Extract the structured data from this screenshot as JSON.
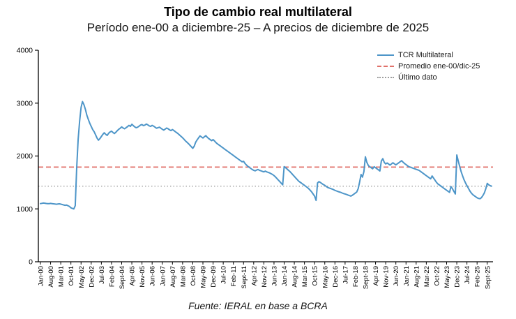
{
  "header": {
    "title": "Tipo de cambio real multilateral",
    "subtitle": "Período ene-00 a diciembre-25 – A precios de diciembre de 2025"
  },
  "footer": {
    "source": "Fuente: IERAL en base a BCRA"
  },
  "legend": [
    {
      "label": "TCR Multilateral",
      "line_style": "solid",
      "color": "#4d95c8"
    },
    {
      "label": "Promedio ene-00/dic-25",
      "line_style": "dashed",
      "color": "#e0716a"
    },
    {
      "label": "Último dato",
      "line_style": "dotted",
      "color": "#9e9e9e"
    }
  ],
  "chart_data": {
    "type": "line",
    "title": "Tipo de cambio real multilateral",
    "subtitle": "Período ene-00 a diciembre-25 – A precios de diciembre de 2025",
    "source": "Fuente: IERAL en base a BCRA",
    "x_unit": "month",
    "x_range": [
      "Jan-00",
      "Dec-25"
    ],
    "x_label_step_months": 7,
    "x_tick_labels": [
      "Jan-00",
      "Aug-00",
      "Mar-01",
      "Oct-01",
      "May-02",
      "Dec-02",
      "Jul-03",
      "Feb-04",
      "Sept-04",
      "Apr-05",
      "Nov-05",
      "Jun-06",
      "Jan-07",
      "Aug-07",
      "Mar-08",
      "Oct-08",
      "May-09",
      "Dec-09",
      "Jul-10",
      "Feb-11",
      "Sept-11",
      "Apr-12",
      "Nov-12",
      "Jun-13",
      "Jan-14",
      "Aug-14",
      "Mar-15",
      "Oct-15",
      "May-16",
      "Dec-16",
      "Jul-17",
      "Feb-18",
      "Sept-18",
      "Apr-19",
      "Nov-19",
      "Jun-20",
      "Jan-21",
      "Aug-21",
      "Mar-22",
      "Oct-22",
      "May-23",
      "Dec-23",
      "Jul-24",
      "Feb-25",
      "Sept-25"
    ],
    "ylim": [
      0,
      4000
    ],
    "y_ticks": [
      0,
      1000,
      2000,
      3000,
      4000
    ],
    "grid": false,
    "legend_position": "top-right",
    "series": [
      {
        "name": "TCR Multilateral",
        "color": "#4d95c8",
        "monthly_values": [
          1100,
          1105,
          1110,
          1108,
          1102,
          1098,
          1100,
          1104,
          1100,
          1096,
          1092,
          1088,
          1092,
          1096,
          1090,
          1082,
          1075,
          1068,
          1072,
          1060,
          1045,
          1020,
          1008,
          1000,
          1060,
          1780,
          2320,
          2660,
          2920,
          3030,
          2970,
          2880,
          2770,
          2690,
          2620,
          2560,
          2500,
          2460,
          2400,
          2340,
          2300,
          2330,
          2370,
          2410,
          2440,
          2410,
          2390,
          2430,
          2455,
          2470,
          2445,
          2425,
          2450,
          2480,
          2505,
          2525,
          2550,
          2530,
          2515,
          2535,
          2555,
          2580,
          2560,
          2600,
          2575,
          2550,
          2535,
          2545,
          2565,
          2585,
          2595,
          2575,
          2585,
          2605,
          2590,
          2570,
          2560,
          2580,
          2565,
          2545,
          2525,
          2535,
          2545,
          2525,
          2505,
          2490,
          2510,
          2530,
          2515,
          2495,
          2480,
          2500,
          2480,
          2460,
          2440,
          2420,
          2395,
          2370,
          2345,
          2315,
          2285,
          2260,
          2235,
          2205,
          2175,
          2145,
          2185,
          2260,
          2305,
          2345,
          2380,
          2360,
          2340,
          2365,
          2385,
          2355,
          2330,
          2310,
          2290,
          2310,
          2285,
          2255,
          2230,
          2210,
          2190,
          2170,
          2150,
          2130,
          2110,
          2090,
          2070,
          2050,
          2030,
          2010,
          1990,
          1970,
          1950,
          1930,
          1910,
          1890,
          1900,
          1860,
          1830,
          1805,
          1785,
          1765,
          1745,
          1730,
          1720,
          1735,
          1745,
          1730,
          1720,
          1710,
          1700,
          1715,
          1700,
          1690,
          1680,
          1665,
          1650,
          1630,
          1605,
          1575,
          1545,
          1515,
          1485,
          1455,
          1800,
          1780,
          1755,
          1730,
          1705,
          1675,
          1645,
          1615,
          1585,
          1555,
          1525,
          1505,
          1485,
          1465,
          1445,
          1425,
          1405,
          1380,
          1350,
          1320,
          1280,
          1240,
          1160,
          1490,
          1515,
          1500,
          1480,
          1460,
          1445,
          1425,
          1405,
          1395,
          1385,
          1375,
          1365,
          1350,
          1340,
          1330,
          1320,
          1312,
          1300,
          1290,
          1282,
          1272,
          1262,
          1252,
          1242,
          1258,
          1278,
          1298,
          1318,
          1380,
          1505,
          1650,
          1600,
          1705,
          1985,
          1880,
          1820,
          1798,
          1778,
          1758,
          1798,
          1778,
          1758,
          1738,
          1718,
          1905,
          1950,
          1880,
          1850,
          1868,
          1848,
          1828,
          1852,
          1872,
          1852,
          1832,
          1852,
          1872,
          1892,
          1912,
          1882,
          1858,
          1838,
          1818,
          1798,
          1788,
          1778,
          1768,
          1758,
          1748,
          1738,
          1728,
          1708,
          1688,
          1668,
          1648,
          1628,
          1608,
          1588,
          1568,
          1622,
          1582,
          1542,
          1502,
          1472,
          1452,
          1432,
          1412,
          1392,
          1372,
          1352,
          1332,
          1312,
          1422,
          1382,
          1332,
          1282,
          2020,
          1905,
          1805,
          1705,
          1625,
          1550,
          1490,
          1440,
          1390,
          1340,
          1300,
          1270,
          1250,
          1230,
          1210,
          1198,
          1192,
          1212,
          1252,
          1302,
          1382,
          1482,
          1455,
          1440,
          1430
        ]
      },
      {
        "name": "Promedio ene-00/dic-25",
        "color": "#e0716a",
        "value": 1790
      },
      {
        "name": "Último dato",
        "color": "#9e9e9e",
        "value": 1430
      }
    ]
  }
}
